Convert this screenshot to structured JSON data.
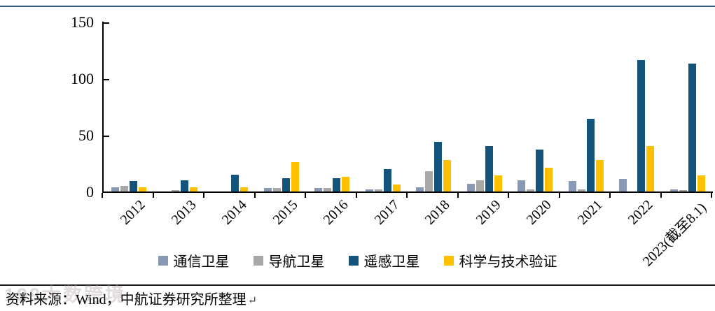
{
  "page": {
    "source_note": "资料来源：Wind，中航证券研究所整理",
    "return_mark": "↵",
    "watermark": "199大数跨境"
  },
  "colors": {
    "top_border": "#2F5E7F",
    "axis": "#000000"
  },
  "chart_data": {
    "type": "bar",
    "title": "",
    "xlabel": "",
    "ylabel": "",
    "categories": [
      "2012",
      "2013",
      "2014",
      "2015",
      "2016",
      "2017",
      "2018",
      "2019",
      "2020",
      "2021",
      "2022",
      "2023(截至8.1)"
    ],
    "series": [
      {
        "name": "通信卫星",
        "color": "#8799B5",
        "values": [
          4,
          0,
          0,
          3,
          3,
          2,
          4,
          7,
          10,
          9,
          11,
          2
        ]
      },
      {
        "name": "导航卫星",
        "color": "#A8A8A8",
        "values": [
          5,
          1,
          0,
          3,
          3,
          2,
          18,
          10,
          2,
          2,
          0,
          1
        ]
      },
      {
        "name": "遥感卫星",
        "color": "#15547A",
        "values": [
          9,
          10,
          15,
          12,
          12,
          20,
          44,
          40,
          37,
          64,
          116,
          113
        ]
      },
      {
        "name": "科学与技术验证",
        "color": "#FFC000",
        "values": [
          4,
          4,
          4,
          26,
          13,
          6,
          28,
          14,
          21,
          28,
          40,
          14
        ]
      }
    ],
    "ylim": [
      0,
      150
    ],
    "yticks": [
      0,
      50,
      100,
      150
    ],
    "grid": false,
    "legend_position": "bottom",
    "x_tick_label_rotation": -45
  }
}
